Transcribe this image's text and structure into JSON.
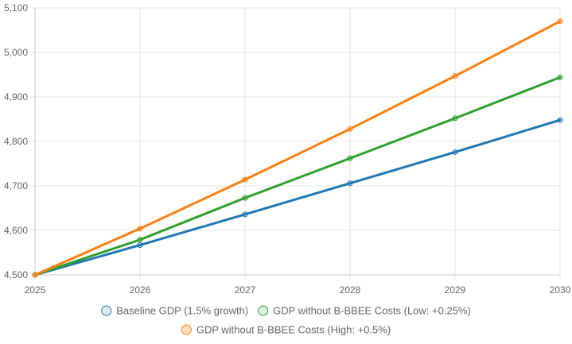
{
  "chart_data": {
    "type": "line",
    "title": "",
    "xlabel": "",
    "ylabel": "",
    "categories": [
      "2025",
      "2026",
      "2027",
      "2028",
      "2029",
      "2030"
    ],
    "ylim": [
      4500,
      5100
    ],
    "yticks": [
      "4,500",
      "4,600",
      "4,700",
      "4,800",
      "4,900",
      "5,000",
      "5,100"
    ],
    "ytick_values": [
      4500,
      4600,
      4700,
      4800,
      4900,
      5000,
      5100
    ],
    "grid": true,
    "legend_position": "bottom",
    "series": [
      {
        "name": "Baseline GDP (1.5% growth)",
        "color": "#1f77b4",
        "fill": "rgba(31,119,180,0.15)",
        "values": [
          4500,
          4567,
          4636,
          4706,
          4776,
          4848
        ]
      },
      {
        "name": "GDP without B-BBEE Costs (Low: +0.25%)",
        "color": "#2ca02c",
        "fill": "rgba(44,160,44,0.15)",
        "values": [
          4500,
          4579,
          4673,
          4762,
          4852,
          4944
        ]
      },
      {
        "name": "GDP without B-BBEE Costs (High: +0.5%)",
        "color": "#ff7f0e",
        "fill": "rgba(255,127,14,0.25)",
        "values": [
          4500,
          4604,
          4714,
          4828,
          4947,
          5070
        ]
      }
    ]
  }
}
